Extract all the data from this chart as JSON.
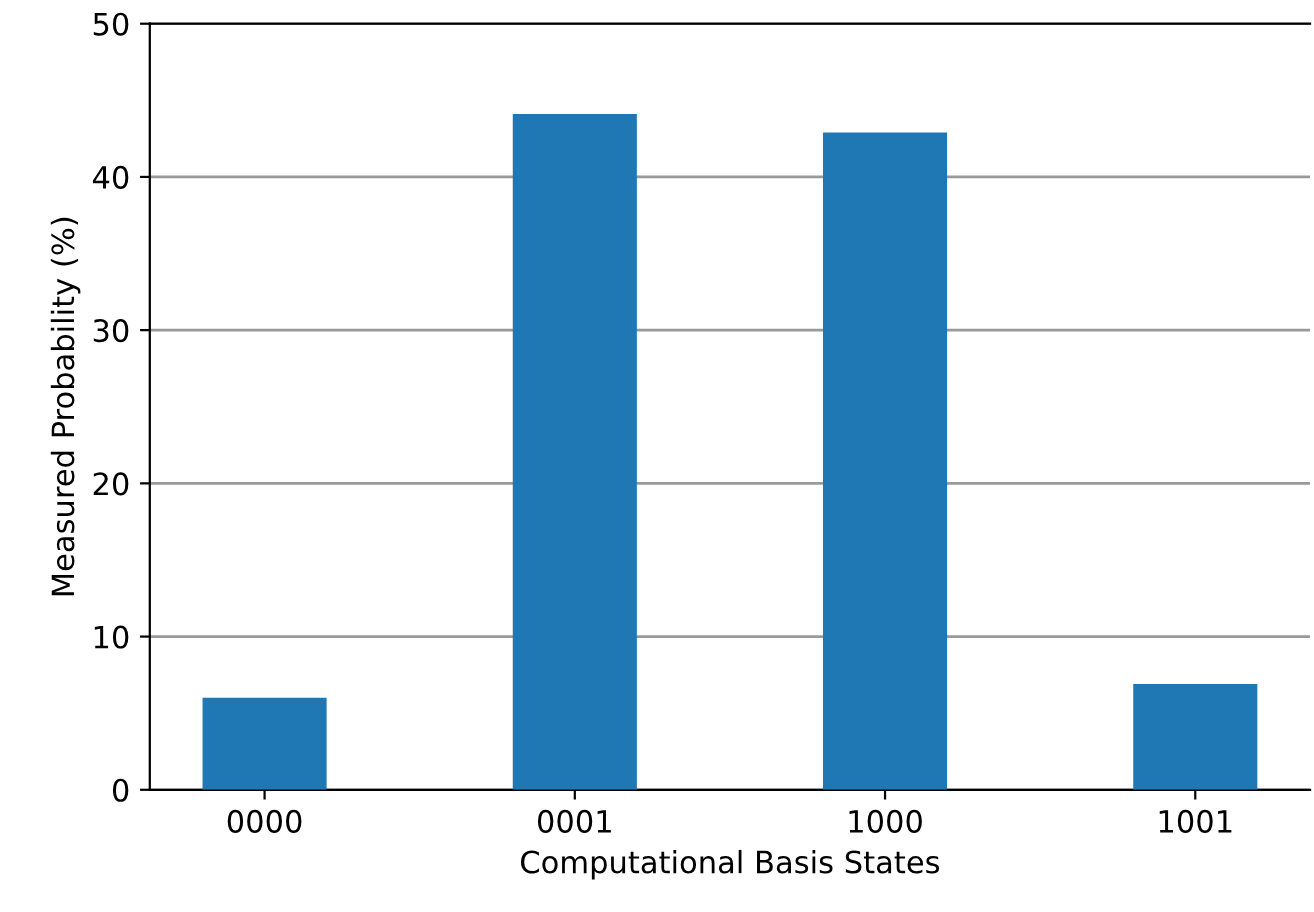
{
  "chart_data": {
    "type": "bar",
    "xlabel": "Computational Basis States",
    "ylabel": "Measured Probability (%)",
    "categories": [
      "0000",
      "0001",
      "1000",
      "1001"
    ],
    "values": [
      6.0,
      44.1,
      42.9,
      6.9
    ],
    "color": "#1f77b4",
    "ylim": [
      0,
      50
    ],
    "yticks": [
      0,
      10,
      20,
      30,
      40,
      50
    ],
    "grid": "y"
  }
}
